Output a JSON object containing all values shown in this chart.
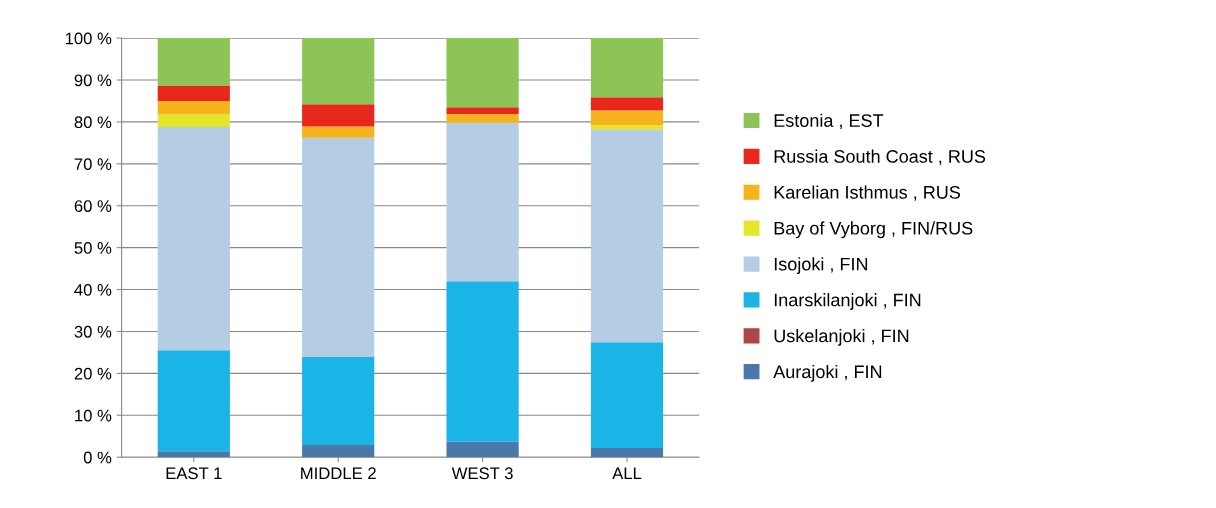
{
  "chart_data": {
    "type": "bar",
    "stacked": true,
    "categories": [
      "EAST 1",
      "MIDDLE 2",
      "WEST 3",
      "ALL"
    ],
    "series": [
      {
        "name": "Aurajoki , FIN",
        "color": "#4a78aa",
        "values": [
          1.4,
          2.9,
          3.7,
          2.2
        ]
      },
      {
        "name": "Uskelanjoki , FIN",
        "color": "#b04545",
        "values": [
          0,
          0,
          0,
          0
        ]
      },
      {
        "name": "Inarskilanjoki , FIN",
        "color": "#1ab4e6",
        "values": [
          24.1,
          21.0,
          38.3,
          25.2
        ]
      },
      {
        "name": "Isojoki , FIN",
        "color": "#b4cce4",
        "values": [
          53.3,
          52.3,
          37.8,
          50.8
        ]
      },
      {
        "name": "Bay of Vyborg , FIN/RUS",
        "color": "#e5e52a",
        "values": [
          3.0,
          0,
          0,
          1.0
        ]
      },
      {
        "name": "Karelian Isthmus , RUS",
        "color": "#f5b41e",
        "values": [
          3.2,
          2.7,
          2.1,
          3.5
        ]
      },
      {
        "name": "Russia South Coast , RUS",
        "color": "#e8281c",
        "values": [
          3.7,
          5.3,
          1.6,
          3.2
        ]
      },
      {
        "name": "Estonia , EST",
        "color": "#8cc555",
        "values": [
          11.3,
          15.8,
          16.5,
          14.1
        ]
      }
    ],
    "ylim": [
      0,
      100
    ],
    "yticks": [
      {
        "value": 0,
        "label": "0 %"
      },
      {
        "value": 10,
        "label": "10 %"
      },
      {
        "value": 20,
        "label": "20 %"
      },
      {
        "value": 30,
        "label": "30 %"
      },
      {
        "value": 40,
        "label": "40 %"
      },
      {
        "value": 50,
        "label": "50 %"
      },
      {
        "value": 60,
        "label": "60 %"
      },
      {
        "value": 70,
        "label": "70 %"
      },
      {
        "value": 80,
        "label": "80 %"
      },
      {
        "value": 90,
        "label": "90 %"
      },
      {
        "value": 100,
        "label": "100 %"
      }
    ],
    "grid": "y",
    "legend": "right"
  }
}
